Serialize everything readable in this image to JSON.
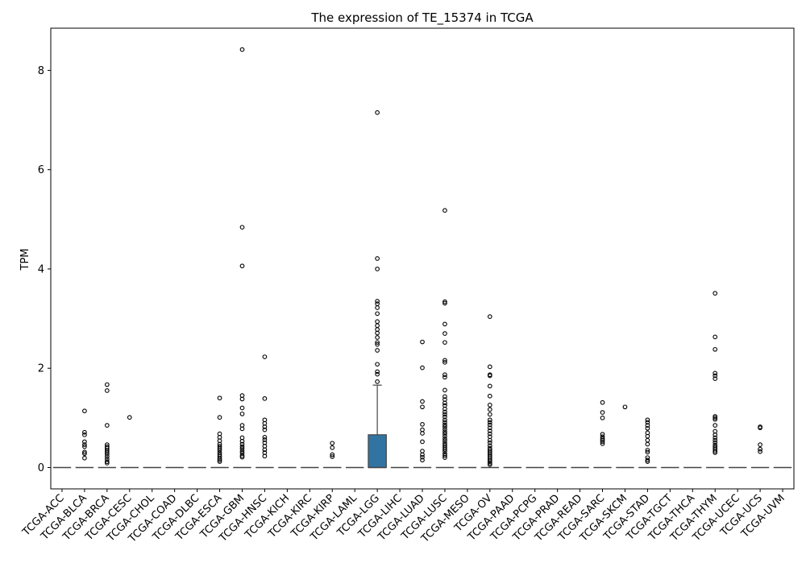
{
  "chart_data": {
    "type": "box",
    "title": "The expression of TE_15374 in TCGA",
    "xlabel": "",
    "ylabel": "TPM",
    "ylim": [
      -0.43,
      8.85
    ],
    "yticks": [
      0,
      2,
      4,
      6,
      8
    ],
    "grid": false,
    "legend": "none",
    "box_color": "#3274a1",
    "categories": [
      "TCGA-ACC",
      "TCGA-BLCA",
      "TCGA-BRCA",
      "TCGA-CESC",
      "TCGA-CHOL",
      "TCGA-COAD",
      "TCGA-DLBC",
      "TCGA-ESCA",
      "TCGA-GBM",
      "TCGA-HNSC",
      "TCGA-KICH",
      "TCGA-KIRC",
      "TCGA-KIRP",
      "TCGA-LAML",
      "TCGA-LGG",
      "TCGA-LIHC",
      "TCGA-LUAD",
      "TCGA-LUSC",
      "TCGA-MESO",
      "TCGA-OV",
      "TCGA-PAAD",
      "TCGA-PCPG",
      "TCGA-PRAD",
      "TCGA-READ",
      "TCGA-SARC",
      "TCGA-SKCM",
      "TCGA-STAD",
      "TCGA-TGCT",
      "TCGA-THCA",
      "TCGA-THYM",
      "TCGA-UCEC",
      "TCGA-UCS",
      "TCGA-UVM"
    ],
    "boxes": [
      {
        "q1": 0,
        "median": 0,
        "q3": 0,
        "whisker_low": 0,
        "whisker_high": 0,
        "outliers": []
      },
      {
        "q1": 0,
        "median": 0,
        "q3": 0,
        "whisker_low": 0,
        "whisker_high": 0,
        "outliers": [
          1.14,
          0.71,
          0.66,
          0.52,
          0.46,
          0.42,
          0.31,
          0.28,
          0.19
        ]
      },
      {
        "q1": 0,
        "median": 0,
        "q3": 0,
        "whisker_low": 0,
        "whisker_high": 0,
        "outliers": [
          1.67,
          1.55,
          0.85,
          0.46,
          0.42,
          0.39,
          0.35,
          0.31,
          0.27,
          0.22,
          0.17,
          0.12,
          0.09
        ]
      },
      {
        "q1": 0,
        "median": 0,
        "q3": 0,
        "whisker_low": 0,
        "whisker_high": 0,
        "outliers": [
          1.01
        ]
      },
      {
        "q1": 0,
        "median": 0,
        "q3": 0,
        "whisker_low": 0,
        "whisker_high": 0,
        "outliers": []
      },
      {
        "q1": 0,
        "median": 0,
        "q3": 0,
        "whisker_low": 0,
        "whisker_high": 0,
        "outliers": []
      },
      {
        "q1": 0,
        "median": 0,
        "q3": 0,
        "whisker_low": 0,
        "whisker_high": 0,
        "outliers": []
      },
      {
        "q1": 0,
        "median": 0,
        "q3": 0,
        "whisker_low": 0,
        "whisker_high": 0,
        "outliers": [
          1.4,
          1.01,
          0.68,
          0.61,
          0.54,
          0.47,
          0.43,
          0.39,
          0.35,
          0.3,
          0.26,
          0.22,
          0.18,
          0.15,
          0.12
        ]
      },
      {
        "q1": 0,
        "median": 0,
        "q3": 0,
        "whisker_low": 0,
        "whisker_high": 0,
        "outliers": [
          8.42,
          4.84,
          4.06,
          1.45,
          1.38,
          1.2,
          1.08,
          0.85,
          0.78,
          0.6,
          0.53,
          0.47,
          0.42,
          0.38,
          0.33,
          0.29,
          0.24,
          0.21
        ]
      },
      {
        "q1": 0,
        "median": 0,
        "q3": 0,
        "whisker_low": 0,
        "whisker_high": 0,
        "outliers": [
          2.23,
          1.39,
          0.96,
          0.89,
          0.82,
          0.76,
          0.61,
          0.56,
          0.5,
          0.43,
          0.36,
          0.3,
          0.23
        ]
      },
      {
        "q1": 0,
        "median": 0,
        "q3": 0,
        "whisker_low": 0,
        "whisker_high": 0,
        "outliers": []
      },
      {
        "q1": 0,
        "median": 0,
        "q3": 0,
        "whisker_low": 0,
        "whisker_high": 0,
        "outliers": []
      },
      {
        "q1": 0,
        "median": 0,
        "q3": 0,
        "whisker_low": 0,
        "whisker_high": 0,
        "outliers": [
          0.49,
          0.4,
          0.26,
          0.22
        ]
      },
      {
        "q1": 0,
        "median": 0,
        "q3": 0,
        "whisker_low": 0,
        "whisker_high": 0,
        "outliers": []
      },
      {
        "q1": 0,
        "median": 0,
        "q3": 0.66,
        "whisker_low": 0,
        "whisker_high": 1.66,
        "outliers": [
          7.15,
          4.21,
          4.0,
          3.35,
          3.3,
          3.22,
          3.1,
          2.94,
          2.86,
          2.78,
          2.71,
          2.62,
          2.52,
          2.48,
          2.36,
          2.08,
          1.93,
          1.88,
          1.73
        ]
      },
      {
        "q1": 0,
        "median": 0,
        "q3": 0,
        "whisker_low": 0,
        "whisker_high": 0,
        "outliers": []
      },
      {
        "q1": 0,
        "median": 0,
        "q3": 0,
        "whisker_low": 0,
        "whisker_high": 0,
        "outliers": [
          2.53,
          2.01,
          1.33,
          1.22,
          0.87,
          0.76,
          0.69,
          0.52,
          0.33,
          0.26,
          0.21,
          0.15
        ]
      },
      {
        "q1": 0,
        "median": 0,
        "q3": 0,
        "whisker_low": 0,
        "whisker_high": 0,
        "outliers": [
          5.18,
          3.34,
          3.31,
          2.89,
          2.7,
          2.52,
          2.16,
          2.12,
          1.87,
          1.82,
          1.56,
          1.43,
          1.37,
          1.3,
          1.25,
          1.18,
          1.12,
          1.07,
          1.02,
          0.96,
          0.91,
          0.86,
          0.82,
          0.77,
          0.72,
          0.68,
          0.63,
          0.58,
          0.54,
          0.49,
          0.45,
          0.41,
          0.37,
          0.33,
          0.28,
          0.24,
          0.2
        ]
      },
      {
        "q1": 0,
        "median": 0,
        "q3": 0,
        "whisker_low": 0,
        "whisker_high": 0,
        "outliers": []
      },
      {
        "q1": 0,
        "median": 0,
        "q3": 0,
        "whisker_low": 0,
        "whisker_high": 0,
        "outliers": [
          3.04,
          2.03,
          1.87,
          1.85,
          1.64,
          1.44,
          1.26,
          1.17,
          1.07,
          0.96,
          0.91,
          0.86,
          0.8,
          0.74,
          0.68,
          0.62,
          0.55,
          0.5,
          0.44,
          0.39,
          0.35,
          0.31,
          0.27,
          0.23,
          0.19,
          0.15,
          0.12,
          0.09,
          0.06
        ]
      },
      {
        "q1": 0,
        "median": 0,
        "q3": 0,
        "whisker_low": 0,
        "whisker_high": 0,
        "outliers": []
      },
      {
        "q1": 0,
        "median": 0,
        "q3": 0,
        "whisker_low": 0,
        "whisker_high": 0,
        "outliers": []
      },
      {
        "q1": 0,
        "median": 0,
        "q3": 0,
        "whisker_low": 0,
        "whisker_high": 0,
        "outliers": []
      },
      {
        "q1": 0,
        "median": 0,
        "q3": 0,
        "whisker_low": 0,
        "whisker_high": 0,
        "outliers": []
      },
      {
        "q1": 0,
        "median": 0,
        "q3": 0,
        "whisker_low": 0,
        "whisker_high": 0,
        "outliers": [
          1.31,
          1.11,
          1.0,
          0.67,
          0.62,
          0.58,
          0.55,
          0.52,
          0.48
        ]
      },
      {
        "q1": 0,
        "median": 0,
        "q3": 0,
        "whisker_low": 0,
        "whisker_high": 0,
        "outliers": [
          1.22
        ]
      },
      {
        "q1": 0,
        "median": 0,
        "q3": 0,
        "whisker_low": 0,
        "whisker_high": 0,
        "outliers": [
          0.96,
          0.91,
          0.85,
          0.79,
          0.7,
          0.63,
          0.55,
          0.47,
          0.35,
          0.31,
          0.2,
          0.15,
          0.12
        ]
      },
      {
        "q1": 0,
        "median": 0,
        "q3": 0,
        "whisker_low": 0,
        "whisker_high": 0,
        "outliers": []
      },
      {
        "q1": 0,
        "median": 0,
        "q3": 0,
        "whisker_low": 0,
        "whisker_high": 0,
        "outliers": []
      },
      {
        "q1": 0,
        "median": 0,
        "q3": 0,
        "whisker_low": 0,
        "whisker_high": 0,
        "outliers": [
          3.51,
          2.63,
          2.38,
          1.9,
          1.85,
          1.79,
          1.03,
          1.0,
          0.97,
          0.85,
          0.73,
          0.66,
          0.6,
          0.55,
          0.5,
          0.45,
          0.41,
          0.37,
          0.33,
          0.3
        ]
      },
      {
        "q1": 0,
        "median": 0,
        "q3": 0,
        "whisker_low": 0,
        "whisker_high": 0,
        "outliers": []
      },
      {
        "q1": 0,
        "median": 0,
        "q3": 0,
        "whisker_low": 0,
        "whisker_high": 0,
        "outliers": [
          0.82,
          0.8,
          0.46,
          0.37,
          0.32
        ]
      },
      {
        "q1": 0,
        "median": 0,
        "q3": 0,
        "whisker_low": 0,
        "whisker_high": 0,
        "outliers": []
      }
    ]
  }
}
